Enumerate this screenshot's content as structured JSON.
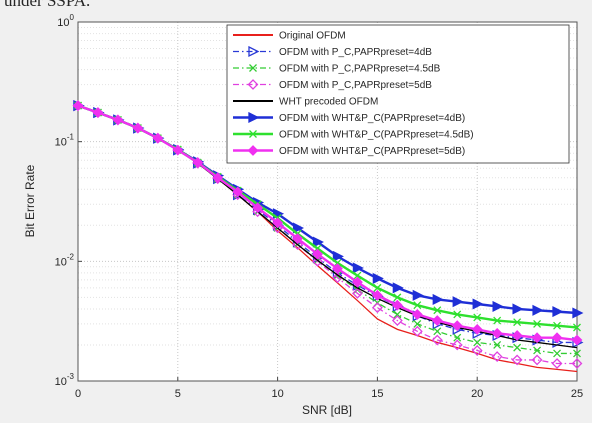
{
  "chart_data": {
    "type": "line",
    "caption": "under SSPA.",
    "xlabel": "SNR [dB]",
    "ylabel": "Bit Error Rate",
    "x": [
      0,
      1,
      2,
      3,
      4,
      5,
      6,
      7,
      8,
      9,
      10,
      11,
      12,
      13,
      14,
      15,
      16,
      17,
      18,
      19,
      20,
      21,
      22,
      23,
      24,
      25
    ],
    "xlim": [
      0,
      25
    ],
    "xticks": [
      0,
      5,
      10,
      15,
      20,
      25
    ],
    "ylim": [
      0.001,
      1
    ],
    "ylog": true,
    "yticks": [
      {
        "value": 0.001,
        "label": "10^-3"
      },
      {
        "value": 0.01,
        "label": "10^-2"
      },
      {
        "value": 0.1,
        "label": "10^-1"
      },
      {
        "value": 1,
        "label": "10^0"
      }
    ],
    "grid": true,
    "legend": "northeast",
    "series": [
      {
        "name": "Original OFDM",
        "color": "#e8201c",
        "dash": "solid",
        "marker": "none",
        "values": [
          0.2,
          0.175,
          0.152,
          0.13,
          0.107,
          0.085,
          0.066,
          0.049,
          0.036,
          0.026,
          0.018,
          0.013,
          0.0092,
          0.0066,
          0.0047,
          0.0033,
          0.0027,
          0.0024,
          0.0021,
          0.0019,
          0.0017,
          0.0015,
          0.0014,
          0.0013,
          0.00125,
          0.0012
        ]
      },
      {
        "name": "OFDM with P_C,PAPRpreset=4dB",
        "color": "#2a3ad6",
        "dash": "dashdot",
        "marker": "triangle",
        "filled": false,
        "values": [
          0.2,
          0.175,
          0.152,
          0.13,
          0.107,
          0.085,
          0.066,
          0.049,
          0.036,
          0.027,
          0.02,
          0.0145,
          0.0107,
          0.008,
          0.0063,
          0.0051,
          0.0042,
          0.0035,
          0.003,
          0.0027,
          0.0025,
          0.0024,
          0.0023,
          0.0022,
          0.0021,
          0.0021
        ]
      },
      {
        "name": "OFDM with P_C,PAPRpreset=4.5dB",
        "color": "#33cc33",
        "dash": "dashdot",
        "marker": "x",
        "filled": false,
        "values": [
          0.2,
          0.175,
          0.152,
          0.13,
          0.107,
          0.085,
          0.066,
          0.049,
          0.036,
          0.026,
          0.019,
          0.014,
          0.0102,
          0.0076,
          0.0058,
          0.0045,
          0.0036,
          0.003,
          0.0026,
          0.0023,
          0.0021,
          0.002,
          0.0019,
          0.0018,
          0.0017,
          0.0017
        ]
      },
      {
        "name": "OFDM with P_C,PAPRpreset=5dB",
        "color": "#e040e0",
        "dash": "dashdot",
        "marker": "diamond",
        "filled": false,
        "values": [
          0.2,
          0.175,
          0.152,
          0.13,
          0.107,
          0.085,
          0.066,
          0.049,
          0.036,
          0.026,
          0.019,
          0.0138,
          0.01,
          0.0073,
          0.0054,
          0.0041,
          0.0032,
          0.0026,
          0.0022,
          0.002,
          0.0018,
          0.0016,
          0.0015,
          0.0015,
          0.0014,
          0.0014
        ]
      },
      {
        "name": "WHT precoded OFDM",
        "color": "#000000",
        "dash": "solid",
        "marker": "none",
        "values": [
          0.2,
          0.175,
          0.152,
          0.13,
          0.107,
          0.085,
          0.066,
          0.049,
          0.036,
          0.026,
          0.019,
          0.0138,
          0.0102,
          0.0077,
          0.006,
          0.0049,
          0.0041,
          0.0035,
          0.0031,
          0.0028,
          0.0026,
          0.0024,
          0.0022,
          0.0021,
          0.002,
          0.0019
        ]
      },
      {
        "name": "OFDM with WHT&P_C(PAPRpreset=4dB)",
        "color": "#1f2fd6",
        "dash": "solid",
        "marker": "triangle",
        "filled": true,
        "values": [
          0.2,
          0.175,
          0.152,
          0.13,
          0.107,
          0.086,
          0.068,
          0.052,
          0.04,
          0.031,
          0.025,
          0.019,
          0.0145,
          0.011,
          0.0088,
          0.0072,
          0.006,
          0.0052,
          0.0048,
          0.0046,
          0.0044,
          0.0042,
          0.004,
          0.0039,
          0.0038,
          0.0037
        ]
      },
      {
        "name": "OFDM with WHT&P_C(PAPRpreset=4.5dB)",
        "color": "#2ee02e",
        "dash": "solid",
        "marker": "x",
        "filled": true,
        "values": [
          0.2,
          0.175,
          0.152,
          0.13,
          0.107,
          0.086,
          0.067,
          0.051,
          0.039,
          0.03,
          0.023,
          0.017,
          0.0128,
          0.0097,
          0.0076,
          0.006,
          0.005,
          0.0043,
          0.0039,
          0.0036,
          0.0034,
          0.0032,
          0.0031,
          0.003,
          0.0029,
          0.0028
        ]
      },
      {
        "name": "OFDM with WHT&P_C(PAPRpreset=5dB)",
        "color": "#f030f0",
        "dash": "solid",
        "marker": "diamond",
        "filled": true,
        "values": [
          0.2,
          0.175,
          0.152,
          0.13,
          0.107,
          0.085,
          0.067,
          0.05,
          0.038,
          0.028,
          0.021,
          0.0155,
          0.0115,
          0.0087,
          0.0067,
          0.0052,
          0.0043,
          0.0036,
          0.0032,
          0.0029,
          0.0027,
          0.0025,
          0.0024,
          0.0023,
          0.0023,
          0.0022
        ]
      }
    ]
  }
}
